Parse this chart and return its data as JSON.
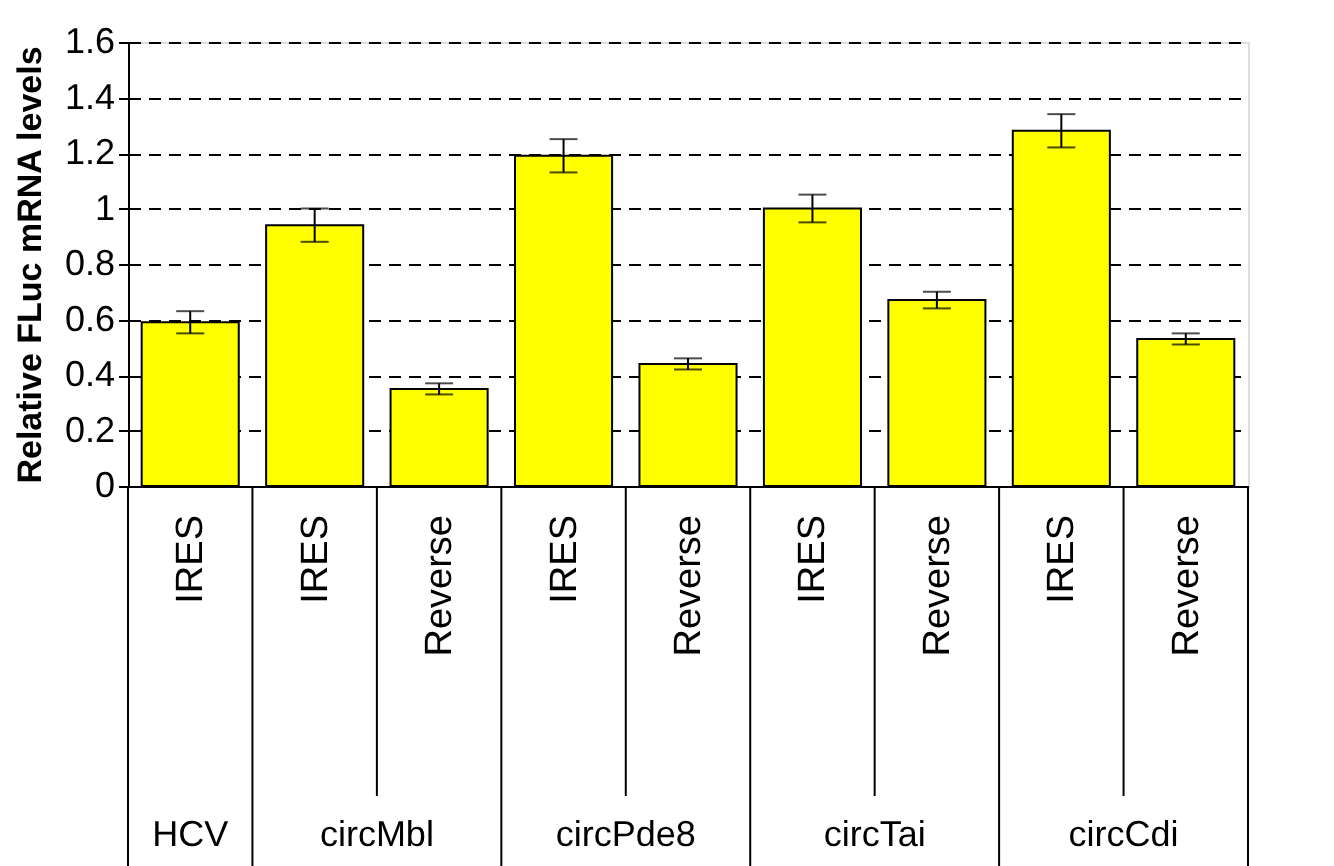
{
  "chart_data": {
    "type": "bar",
    "categories": [
      "IRES",
      "IRES",
      "Reverse",
      "IRES",
      "Reverse",
      "IRES",
      "Reverse",
      "IRES",
      "Reverse"
    ],
    "values": [
      0.59,
      0.94,
      0.35,
      1.19,
      0.44,
      1.0,
      0.67,
      1.28,
      0.53
    ],
    "errors": [
      0.04,
      0.06,
      0.02,
      0.06,
      0.02,
      0.05,
      0.03,
      0.06,
      0.02
    ],
    "color": "#ffff00",
    "ylabel": "Relative FLuc mRNA levels",
    "ylim": [
      0,
      1.6
    ],
    "yticks": [
      0,
      0.2,
      0.4,
      0.6,
      0.8,
      1,
      1.2,
      1.4,
      1.6
    ],
    "grid": "y",
    "annotations": [
      "HCV",
      "circMbl",
      "circPde8",
      "circTai",
      "circCdi"
    ]
  }
}
